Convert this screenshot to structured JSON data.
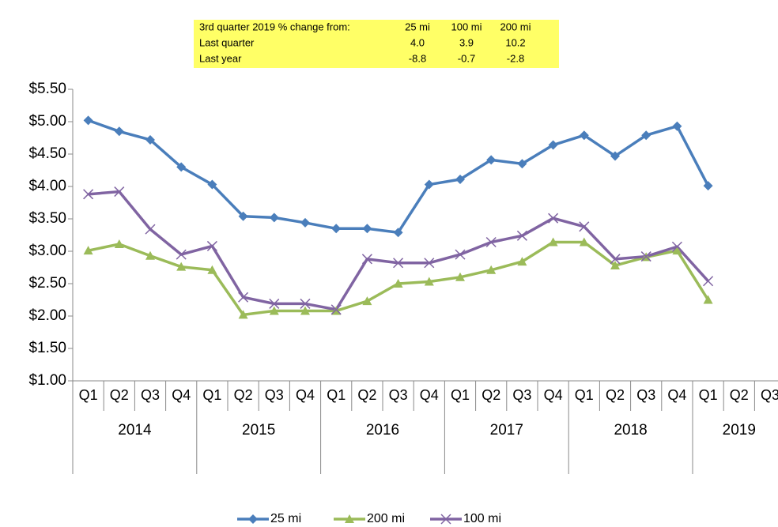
{
  "chart_data": {
    "type": "line",
    "annotation_table": {
      "header": [
        "3rd quarter 2019 % change from:",
        "25 mi",
        "100 mi",
        "200 mi"
      ],
      "rows": [
        [
          "Last quarter",
          "4.0",
          "3.9",
          "10.2"
        ],
        [
          "Last year",
          "-8.8",
          "-0.7",
          "-2.8"
        ]
      ]
    },
    "year_groups": [
      {
        "label": "2014",
        "quarters": [
          "Q1",
          "Q2",
          "Q3",
          "Q4"
        ]
      },
      {
        "label": "2015",
        "quarters": [
          "Q1",
          "Q2",
          "Q3",
          "Q4"
        ]
      },
      {
        "label": "2016",
        "quarters": [
          "Q1",
          "Q2",
          "Q3",
          "Q4"
        ]
      },
      {
        "label": "2017",
        "quarters": [
          "Q1",
          "Q2",
          "Q3",
          "Q4"
        ]
      },
      {
        "label": "2018",
        "quarters": [
          "Q1",
          "Q2",
          "Q3",
          "Q4"
        ]
      },
      {
        "label": "2019",
        "quarters": [
          "Q1",
          "Q2",
          "Q3"
        ]
      }
    ],
    "series": [
      {
        "name": "25 mi",
        "color": "#4a7ebb",
        "marker": "diamond",
        "values": [
          5.02,
          4.85,
          4.72,
          4.3,
          4.03,
          3.54,
          3.52,
          3.44,
          3.35,
          3.35,
          3.29,
          4.03,
          4.11,
          4.41,
          4.35,
          4.64,
          4.79,
          4.47,
          4.79,
          4.93,
          4.01,
          null,
          null
        ]
      },
      {
        "name": "200 mi",
        "color": "#9bbb59",
        "marker": "triangle",
        "values": [
          3.01,
          3.11,
          2.93,
          2.76,
          2.71,
          2.02,
          2.08,
          2.08,
          2.08,
          2.23,
          2.5,
          2.53,
          2.6,
          2.71,
          2.84,
          3.14,
          3.14,
          2.78,
          2.91,
          3.01,
          2.25,
          null,
          null
        ]
      },
      {
        "name": "100 mi",
        "color": "#8064a2",
        "marker": "x",
        "values": [
          3.88,
          3.92,
          3.34,
          2.95,
          3.08,
          2.29,
          2.19,
          2.19,
          2.1,
          2.88,
          2.82,
          2.82,
          2.95,
          3.14,
          3.24,
          3.51,
          3.38,
          2.88,
          2.92,
          3.07,
          2.54,
          null,
          null
        ]
      }
    ],
    "ylim": [
      1.0,
      5.5
    ],
    "yticks": [
      {
        "value": 1.0,
        "label": "$1.00"
      },
      {
        "value": 1.5,
        "label": "$1.50"
      },
      {
        "value": 2.0,
        "label": "$2.00"
      },
      {
        "value": 2.5,
        "label": "$2.50"
      },
      {
        "value": 3.0,
        "label": "$3.00"
      },
      {
        "value": 3.5,
        "label": "$3.50"
      },
      {
        "value": 4.0,
        "label": "$4.00"
      },
      {
        "value": 4.5,
        "label": "$4.50"
      },
      {
        "value": 5.0,
        "label": "$5.00"
      },
      {
        "value": 5.5,
        "label": "$5.50"
      }
    ],
    "legend": "bottom"
  }
}
